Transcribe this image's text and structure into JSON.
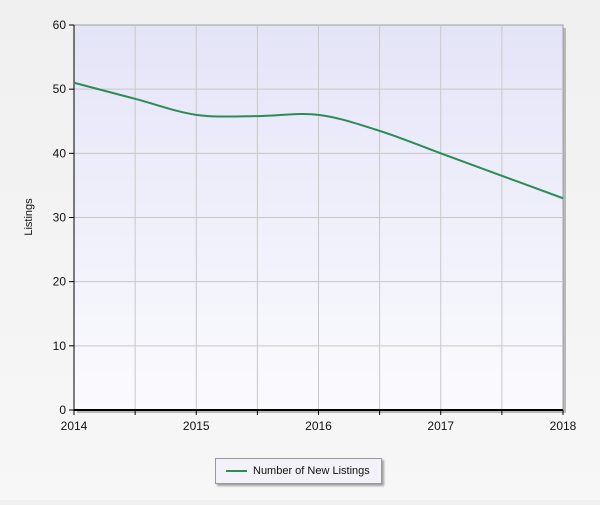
{
  "chart_data": {
    "type": "line",
    "x": [
      2014,
      2014.5,
      2015,
      2015.5,
      2016,
      2016.5,
      2017,
      2017.5,
      2018
    ],
    "x_ticks": [
      "2014",
      "2015",
      "2016",
      "2017",
      "2018"
    ],
    "xlim": [
      2014,
      2018
    ],
    "ylabel": "Listings",
    "ylim": [
      0,
      60
    ],
    "y_ticks": [
      "0",
      "10",
      "20",
      "30",
      "40",
      "50",
      "60"
    ],
    "grid": true,
    "legend_position": "bottom-center",
    "series": [
      {
        "name": "Number of New Listings",
        "color": "#2e8b57",
        "y": [
          51,
          48.5,
          46,
          45.8,
          46,
          43.5,
          40,
          36.5,
          33
        ]
      }
    ]
  }
}
